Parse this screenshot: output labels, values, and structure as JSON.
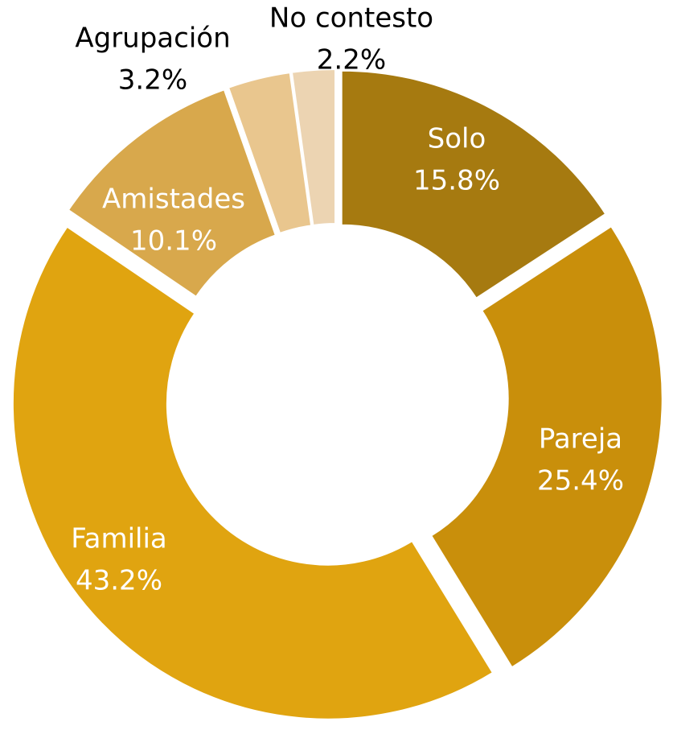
{
  "chart_data": {
    "type": "donut",
    "categories": [
      "Solo",
      "Pareja",
      "Familia",
      "Amistades",
      "Agrupación",
      "No contesto"
    ],
    "values": [
      15.8,
      25.4,
      43.2,
      10.1,
      3.2,
      2.2
    ],
    "value_labels": [
      "15.8%",
      "25.4%",
      "43.2%",
      "10.1%",
      "3.2%",
      "2.2%"
    ],
    "colors": [
      "#a67a10",
      "#c98f0b",
      "#e0a410",
      "#d8a84c",
      "#e9c68e",
      "#ecd4b2"
    ]
  }
}
